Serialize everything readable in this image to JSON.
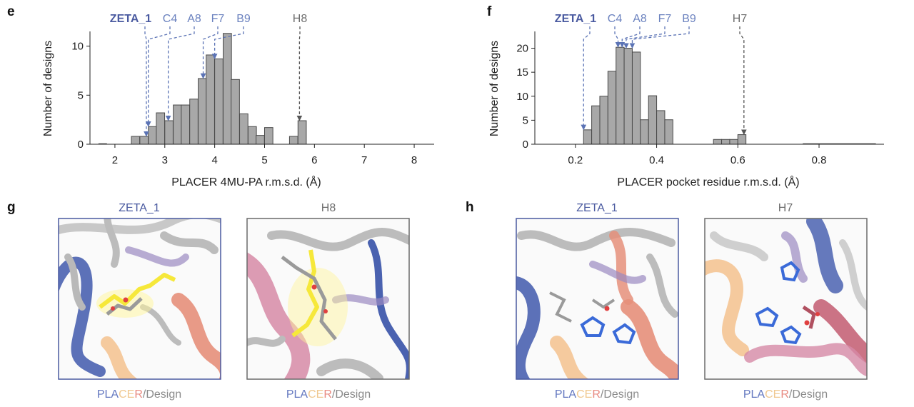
{
  "colors": {
    "bar_fill": "#a8a8a8",
    "bar_stroke": "#4a4a4a",
    "zeta": "#4a5aa0",
    "blue_label": "#6b82bf",
    "gray_label": "#6d6d6d",
    "arrow_blue": "#5b73b5",
    "arrow_gray": "#555555",
    "panel_zeta_border": "#4a5aa0",
    "panel_other_border": "#6a6a6a",
    "placer_pla": "#6478c0",
    "placer_ce": "#f0c890",
    "placer_r": "#e88a80",
    "design_gray": "#8a8a8a",
    "helix_blue": "#4a62b0",
    "helix_salmon": "#e58f7a",
    "helix_gray": "#bcbcbc",
    "ligand_yellow": "#f6e83a",
    "helix_pink": "#d68aa6",
    "helix_orange": "#f3c18d",
    "helix_purple": "#9a89c0"
  },
  "chart_data": [
    {
      "type": "bar",
      "panel_letter": "e",
      "title": "",
      "xlabel": "PLACER 4MU-PA r.m.s.d. (Å)",
      "ylabel": "Number of designs",
      "xlim": [
        1.5,
        8.4
      ],
      "ylim": [
        0,
        11.5
      ],
      "xticks": [
        2,
        3,
        4,
        5,
        6,
        7,
        8
      ],
      "xtick_labels": [
        "2",
        "3",
        "4",
        "5",
        "6",
        "7",
        "8"
      ],
      "yticks": [
        0,
        5,
        10
      ],
      "ytick_labels": [
        "0",
        "5",
        "10"
      ],
      "bin_width": 0.167,
      "bins_left": [
        1.67,
        2.33,
        2.5,
        2.67,
        2.83,
        3.0,
        3.17,
        3.33,
        3.5,
        3.67,
        3.83,
        4.0,
        4.17,
        4.33,
        4.5,
        4.67,
        4.83,
        5.0,
        5.5,
        5.67
      ],
      "values": [
        0,
        0.8,
        0.8,
        1.8,
        3.2,
        2.4,
        4,
        4,
        4.6,
        6.7,
        9.1,
        8.7,
        11.3,
        6.6,
        3.1,
        1.8,
        0.9,
        1.7,
        0.8,
        2.4
      ],
      "annotations": [
        {
          "label": "ZETA_1",
          "value": 2.63,
          "color_key": "zeta",
          "arrow_key": "arrow_blue",
          "bold": true
        },
        {
          "label": "C4",
          "value": 2.67,
          "color_key": "blue_label",
          "arrow_key": "arrow_blue",
          "bold": false
        },
        {
          "label": "A8",
          "value": 3.07,
          "color_key": "blue_label",
          "arrow_key": "arrow_blue",
          "bold": false
        },
        {
          "label": "F7",
          "value": 3.77,
          "color_key": "blue_label",
          "arrow_key": "arrow_blue",
          "bold": false
        },
        {
          "label": "B9",
          "value": 4.0,
          "color_key": "blue_label",
          "arrow_key": "arrow_blue",
          "bold": false
        },
        {
          "label": "H8",
          "value": 5.7,
          "color_key": "gray_label",
          "arrow_key": "arrow_gray",
          "bold": false
        }
      ]
    },
    {
      "type": "bar",
      "panel_letter": "f",
      "title": "",
      "xlabel": "PLACER pocket residue r.m.s.d. (Å)",
      "ylabel": "Number of designs",
      "xlim": [
        0.1,
        0.96
      ],
      "ylim": [
        0,
        23.5
      ],
      "xticks": [
        0.2,
        0.4,
        0.6,
        0.8
      ],
      "xtick_labels": [
        "0.2",
        "0.4",
        "0.6",
        "0.8"
      ],
      "yticks": [
        0,
        5,
        10,
        15,
        20
      ],
      "ytick_labels": [
        "0",
        "5",
        "10",
        "15",
        "20"
      ],
      "bin_width": 0.02,
      "bins_left": [
        0.22,
        0.24,
        0.26,
        0.28,
        0.3,
        0.32,
        0.34,
        0.36,
        0.38,
        0.4,
        0.42,
        0.44,
        0.54,
        0.56,
        0.58,
        0.6
      ],
      "values": [
        3,
        8,
        10,
        15.2,
        20.2,
        20,
        19.2,
        5.1,
        10.1,
        7,
        5.1,
        0,
        1,
        1,
        1,
        2
      ],
      "annotations": [
        {
          "label": "ZETA_1",
          "value": 0.22,
          "color_key": "zeta",
          "arrow_key": "arrow_blue",
          "bold": true
        },
        {
          "label": "C4",
          "value": 0.305,
          "color_key": "blue_label",
          "arrow_key": "arrow_blue",
          "bold": false
        },
        {
          "label": "A8",
          "value": 0.315,
          "color_key": "blue_label",
          "arrow_key": "arrow_blue",
          "bold": false
        },
        {
          "label": "F7",
          "value": 0.325,
          "color_key": "blue_label",
          "arrow_key": "arrow_blue",
          "bold": false
        },
        {
          "label": "B9",
          "value": 0.34,
          "color_key": "blue_label",
          "arrow_key": "arrow_blue",
          "bold": false
        },
        {
          "label": "H7",
          "value": 0.615,
          "color_key": "gray_label",
          "arrow_key": "arrow_gray",
          "bold": false
        }
      ]
    }
  ],
  "structure_panels": {
    "g": {
      "letter": "g",
      "left": {
        "title": "ZETA_1",
        "caption": {
          "pla": "PLA",
          "ce": "CE",
          "r": "R",
          "slash_design": "/Design"
        }
      },
      "right": {
        "title": "H8",
        "caption": {
          "pla": "PLA",
          "ce": "CE",
          "r": "R",
          "slash_design": "/Design"
        }
      }
    },
    "h": {
      "letter": "h",
      "left": {
        "title": "ZETA_1",
        "caption": {
          "pla": "PLA",
          "ce": "CE",
          "r": "R",
          "slash_design": "/Design"
        }
      },
      "right": {
        "title": "H7",
        "caption": {
          "pla": "PLA",
          "ce": "CE",
          "r": "R",
          "slash_design": "/Design"
        }
      }
    }
  }
}
